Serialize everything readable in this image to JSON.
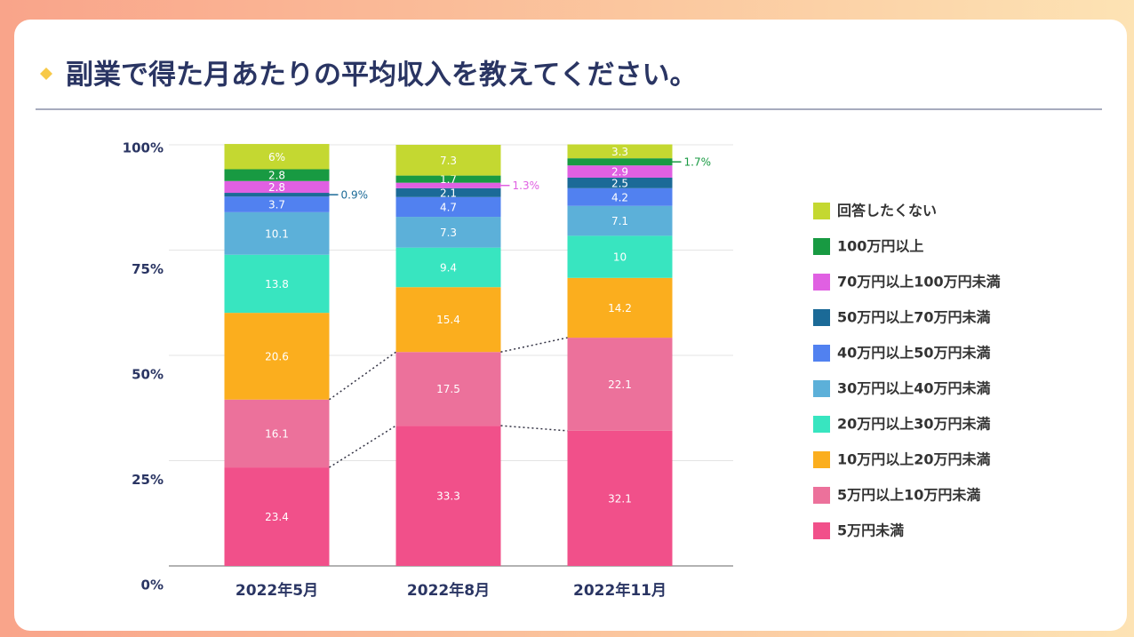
{
  "chart_data": {
    "type": "stacked_bar",
    "title": "副業で得た月あたりの平均収入を教えてください。",
    "categories": [
      "2022年5月",
      "2022年8月",
      "2022年11月"
    ],
    "series": [
      {
        "name": "5万円未満",
        "color": "#f1508a",
        "values": [
          23.4,
          33.3,
          32.1
        ],
        "value_labels": [
          "23.4",
          "33.3",
          "32.1"
        ]
      },
      {
        "name": "5万円以上10万円未満",
        "color": "#ec719b",
        "values": [
          16.1,
          17.5,
          22.1
        ],
        "value_labels": [
          "16.1",
          "17.5",
          "22.1"
        ]
      },
      {
        "name": "10万円以上20万円未満",
        "color": "#fbae1e",
        "values": [
          20.6,
          15.4,
          14.2
        ],
        "value_labels": [
          "20.6",
          "15.4",
          "14.2"
        ]
      },
      {
        "name": "20万円以上30万円未満",
        "color": "#38e5c0",
        "values": [
          13.8,
          9.4,
          10
        ],
        "value_labels": [
          "13.8",
          "9.4",
          "10"
        ]
      },
      {
        "name": "30万円以上40万円未満",
        "color": "#5cb0d9",
        "values": [
          10.1,
          7.3,
          7.1
        ],
        "value_labels": [
          "10.1",
          "7.3",
          "7.1"
        ]
      },
      {
        "name": "40万円以上50万円未満",
        "color": "#5181f0",
        "values": [
          3.7,
          4.7,
          4.2
        ],
        "value_labels": [
          "3.7",
          "4.7",
          "4.2"
        ]
      },
      {
        "name": "50万円以上70万円未満",
        "color": "#1b6a97",
        "values": [
          0.9,
          2.1,
          2.5
        ],
        "value_labels": [
          "0.9%",
          "2.1",
          "2.5"
        ]
      },
      {
        "name": "70万円以上100万円未満",
        "color": "#e060e2",
        "values": [
          2.8,
          1.3,
          2.9
        ],
        "value_labels": [
          "2.8",
          "1.3%",
          "2.9"
        ]
      },
      {
        "name": "100万円以上",
        "color": "#189a42",
        "values": [
          2.8,
          1.7,
          1.7
        ],
        "value_labels": [
          "2.8",
          "1.7",
          "1.7%"
        ]
      },
      {
        "name": "回答したくない",
        "color": "#c4d831",
        "values": [
          6,
          7.3,
          3.3
        ],
        "value_labels": [
          "6%",
          "7.3",
          "3.3"
        ]
      }
    ],
    "ylim": [
      0,
      100
    ],
    "yticks": [
      {
        "value": 0,
        "label": "0%"
      },
      {
        "value": 25,
        "label": "25%"
      },
      {
        "value": 50,
        "label": "50%"
      },
      {
        "value": 75,
        "label": "75%"
      },
      {
        "value": 100,
        "label": "100%"
      }
    ],
    "grid": true,
    "legend": "right"
  }
}
